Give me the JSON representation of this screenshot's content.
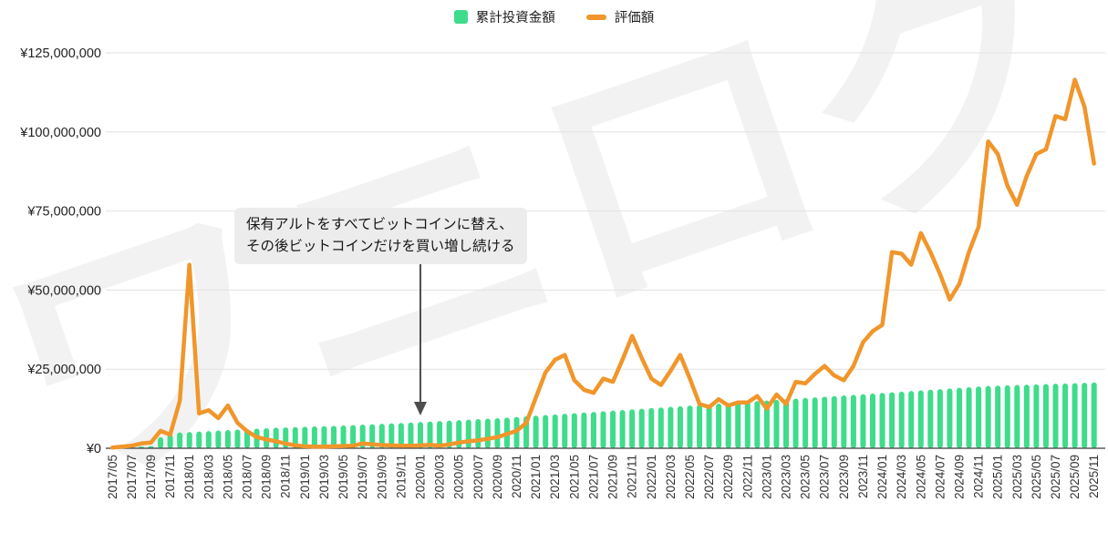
{
  "page": {
    "background": "#ffffff"
  },
  "watermark": {
    "text": "ワニログ"
  },
  "legend": {
    "items": [
      {
        "label": "累計投資金額",
        "marker": "square",
        "color": "#3edc8b"
      },
      {
        "label": "評価額",
        "marker": "dash",
        "color": "#f0962b"
      }
    ]
  },
  "annotation": {
    "line1": "保有アルトをすべてビットコインに替え、",
    "line2": "その後ビットコインだけを買い増し続ける",
    "arrow_target_month": "2020/01",
    "arrow_color": "#4d4d4d"
  },
  "chart_data": {
    "type": "bar",
    "subtype": "combo-bar-line",
    "title": "",
    "xlabel": "",
    "ylabel": "",
    "unit": "JPY million",
    "grid": true,
    "legend_position": "top",
    "ylim": [
      0,
      125000000
    ],
    "y_ticks": [
      "¥0",
      "¥25,000,000",
      "¥50,000,000",
      "¥75,000,000",
      "¥100,000,000",
      "¥125,000,000"
    ],
    "x_tick_every": 2,
    "x": [
      "2017/05",
      "2017/06",
      "2017/07",
      "2017/08",
      "2017/09",
      "2017/10",
      "2017/11",
      "2017/12",
      "2018/01",
      "2018/02",
      "2018/03",
      "2018/04",
      "2018/05",
      "2018/06",
      "2018/07",
      "2018/08",
      "2018/09",
      "2018/10",
      "2018/11",
      "2018/12",
      "2019/01",
      "2019/02",
      "2019/03",
      "2019/04",
      "2019/05",
      "2019/06",
      "2019/07",
      "2019/08",
      "2019/09",
      "2019/10",
      "2019/11",
      "2019/12",
      "2020/01",
      "2020/02",
      "2020/03",
      "2020/04",
      "2020/05",
      "2020/06",
      "2020/07",
      "2020/08",
      "2020/09",
      "2020/10",
      "2020/11",
      "2020/12",
      "2021/01",
      "2021/02",
      "2021/03",
      "2021/04",
      "2021/05",
      "2021/06",
      "2021/07",
      "2021/08",
      "2021/09",
      "2021/10",
      "2021/11",
      "2021/12",
      "2022/01",
      "2022/02",
      "2022/03",
      "2022/04",
      "2022/05",
      "2022/06",
      "2022/07",
      "2022/08",
      "2022/09",
      "2022/10",
      "2022/11",
      "2022/12",
      "2023/01",
      "2023/02",
      "2023/03",
      "2023/04",
      "2023/05",
      "2023/06",
      "2023/07",
      "2023/08",
      "2023/09",
      "2023/10",
      "2023/11",
      "2023/12",
      "2024/01",
      "2024/02",
      "2024/03",
      "2024/04",
      "2024/05",
      "2024/06",
      "2024/07",
      "2024/08",
      "2024/09",
      "2024/10",
      "2024/11",
      "2024/12",
      "2025/01",
      "2025/02",
      "2025/03",
      "2025/04",
      "2025/05",
      "2025/06",
      "2025/07",
      "2025/08",
      "2025/09",
      "2025/10",
      "2025/11"
    ],
    "series": [
      {
        "name": "累計投資金額",
        "type": "bar",
        "color": "#3edc8b",
        "values_million": [
          0.1,
          0.25,
          0.4,
          0.55,
          0.7,
          3.5,
          4.3,
          5.0,
          5.15,
          5.3,
          5.45,
          5.6,
          5.75,
          5.9,
          6.05,
          6.2,
          6.35,
          6.5,
          6.6,
          6.7,
          6.8,
          6.9,
          7.0,
          7.1,
          7.2,
          7.35,
          7.5,
          7.6,
          7.75,
          7.9,
          8.0,
          8.15,
          8.3,
          8.45,
          8.6,
          8.75,
          8.9,
          9.05,
          9.2,
          9.35,
          9.5,
          9.7,
          9.9,
          10.1,
          10.3,
          10.5,
          10.7,
          10.9,
          11.1,
          11.3,
          11.5,
          11.7,
          11.9,
          12.1,
          12.3,
          12.5,
          12.7,
          12.9,
          13.1,
          13.3,
          13.5,
          13.7,
          13.9,
          14.1,
          14.3,
          14.5,
          14.7,
          14.9,
          15.1,
          15.3,
          15.5,
          15.7,
          15.9,
          16.1,
          16.3,
          16.5,
          16.7,
          16.9,
          17.1,
          17.3,
          17.5,
          17.7,
          17.9,
          18.1,
          18.3,
          18.5,
          18.7,
          18.9,
          19.1,
          19.3,
          19.5,
          19.7,
          19.8,
          19.9,
          20.0,
          20.1,
          20.2,
          20.3,
          20.4,
          20.5,
          20.6,
          20.7,
          20.8
        ]
      },
      {
        "name": "評価額",
        "type": "line",
        "color": "#f0962b",
        "values_million": [
          0.2,
          0.5,
          0.8,
          1.5,
          1.8,
          5.5,
          4.3,
          15,
          58,
          11,
          12,
          9.5,
          13.5,
          8,
          5.4,
          3.5,
          2.8,
          2.2,
          1.5,
          0.9,
          0.6,
          0.5,
          0.5,
          0.6,
          0.7,
          0.8,
          1.5,
          1.2,
          1.0,
          0.9,
          0.8,
          0.8,
          0.9,
          1.1,
          0.8,
          1.2,
          1.8,
          2.2,
          2.5,
          3.0,
          3.5,
          4.5,
          5.5,
          8,
          16,
          24,
          28,
          29.5,
          21.5,
          18.5,
          17.5,
          22,
          21,
          28,
          35.5,
          28.5,
          22,
          20,
          24.5,
          29.5,
          22,
          14,
          13,
          15.5,
          13.5,
          14.5,
          14.5,
          16.5,
          12.5,
          17,
          14,
          21,
          20.5,
          23.5,
          26,
          23,
          21.5,
          26,
          33.5,
          37,
          39,
          62,
          61.5,
          58,
          68,
          62,
          55,
          47,
          52,
          62,
          70,
          97,
          93,
          83,
          77,
          86,
          93,
          94.5,
          105,
          104,
          116.5,
          108,
          90
        ]
      }
    ],
    "colors": {
      "grid": "#e2e2e2",
      "axis_baseline": "#3c3c3c",
      "y_tick_text": "#222222",
      "x_tick_text": "#333333"
    }
  }
}
